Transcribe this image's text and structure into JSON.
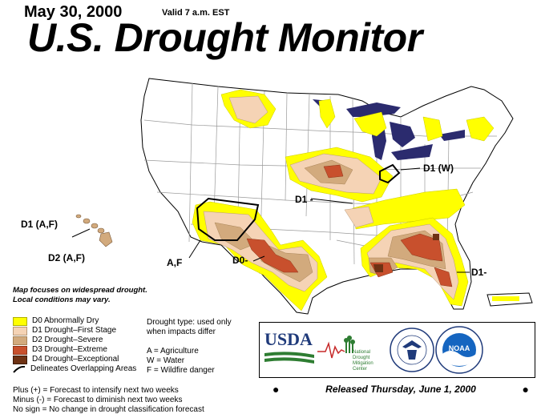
{
  "header": {
    "date": "May 30, 2000",
    "valid": "Valid 7 a.m. EST",
    "title": "U.S. Drought Monitor"
  },
  "map_labels": {
    "d1_w": "D1 (W)",
    "d1_center": "D1 -",
    "a_f": "A,F",
    "d0": "D0-",
    "d1_se": "D1-",
    "hawaii_d1": "D1 (A,F)",
    "hawaii_d2": "D2 (A,F)"
  },
  "note": {
    "line1": "Map focuses on widespread drought.",
    "line2": "Local conditions may vary."
  },
  "legend": {
    "items": [
      {
        "label": "D0 Abnormally Dry",
        "color": "#ffff00"
      },
      {
        "label": "D1 Drought–First Stage",
        "color": "#f5d3b5"
      },
      {
        "label": "D2 Drought–Severe",
        "color": "#d2aa7d"
      },
      {
        "label": "D3 Drought–Extreme",
        "color": "#c8502d"
      },
      {
        "label": "D4 Drought–Exceptional",
        "color": "#6e3214"
      }
    ],
    "overlap_label": "Delineates Overlapping Areas"
  },
  "drought_type": {
    "line1": "Drought type: used only",
    "line2": "when impacts differ",
    "a": "A = Agriculture",
    "w": "W = Water",
    "f": "F = Wildfire danger"
  },
  "forecast": {
    "plus": "Plus (+) = Forecast to intensify next two weeks",
    "minus": "Minus (-) = Forecast to diminish next two weeks",
    "nosign": "No sign = No change in drought classification forecast"
  },
  "logos": {
    "usda": "USDA",
    "ndmc_line1": "National",
    "ndmc_line2": "Drought",
    "ndmc_line3": "Mitigation",
    "ndmc_line4": "Center",
    "noaa": "NOAA"
  },
  "footer": {
    "released": "Released Thursday, June 1, 2000"
  },
  "colors": {
    "water": "#2b2b6e",
    "state_line": "#999999"
  }
}
